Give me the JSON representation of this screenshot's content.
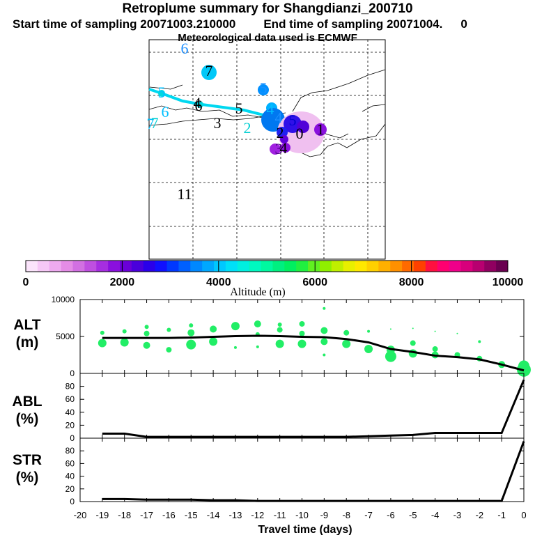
{
  "header": {
    "title": "Retroplume summary for Shangdianzi_200710",
    "start_label": "Start time of sampling 20071003.210000",
    "end_label": "End time of sampling 20071004.",
    "end_suffix": "0",
    "met_label": "Meteorological data used is ECMWF"
  },
  "map": {
    "day_labels": [
      {
        "text": "6",
        "color": "#1e90ff"
      },
      {
        "text": "7",
        "color": "#000000"
      },
      {
        "text": "7",
        "color": "#00bfff"
      },
      {
        "text": "5",
        "color": "#1e90ff"
      },
      {
        "text": "5",
        "color": "#00bfff"
      },
      {
        "text": "6",
        "color": "#00bfff"
      },
      {
        "text": "6",
        "color": "#000000"
      },
      {
        "text": "4",
        "color": "#00bfff"
      },
      {
        "text": "5",
        "color": "#000000"
      },
      {
        "text": "4",
        "color": "#000000"
      },
      {
        "text": "3",
        "color": "#000000"
      },
      {
        "text": "2",
        "color": "#00ced1"
      },
      {
        "text": "7",
        "color": "#00ced1"
      },
      {
        "text": "4",
        "color": "#1e90ff"
      },
      {
        "text": "5",
        "color": "#0000cd"
      },
      {
        "text": "2",
        "color": "#000000"
      },
      {
        "text": "0",
        "color": "#000000"
      },
      {
        "text": "1",
        "color": "#000000"
      },
      {
        "text": "3",
        "color": "#4b0082"
      },
      {
        "text": "4",
        "color": "#000000"
      },
      {
        "text": "11",
        "color": "#000000"
      }
    ]
  },
  "colorbar": {
    "label": "Altitude (m)",
    "ticks": [
      "0",
      "2000",
      "4000",
      "6000",
      "8000",
      "10000"
    ],
    "colors": [
      "#fbe4fb",
      "#f6c8f6",
      "#eeaaf0",
      "#e48ce6",
      "#d270e2",
      "#bf4fe0",
      "#a62ee0",
      "#8a10de",
      "#6a00d8",
      "#4a00dc",
      "#2a00ea",
      "#1010ff",
      "#0038ff",
      "#0060ff",
      "#0088ff",
      "#00a8ff",
      "#00c8ff",
      "#00e0f8",
      "#00f0e0",
      "#00f8c0",
      "#00f8a0",
      "#00f080",
      "#00f060",
      "#20f040",
      "#60f020",
      "#90f000",
      "#c0f000",
      "#e8f000",
      "#ffe800",
      "#ffd000",
      "#ffb000",
      "#ff9000",
      "#ff6a00",
      "#ff4000",
      "#ff1040",
      "#ff0070",
      "#f0008a",
      "#d8007c",
      "#b80070",
      "#900060",
      "#6a0050"
    ]
  },
  "chart_data": [
    {
      "type": "line",
      "name": "ALT",
      "ylabel": "ALT (m)",
      "ylim": [
        0,
        10000
      ],
      "yticks": [
        "0",
        "5000",
        "10000"
      ],
      "x": [
        -19,
        -18,
        -17,
        -16,
        -15,
        -14,
        -13,
        -12,
        -11,
        -10,
        -9,
        -8,
        -7,
        -6,
        -5,
        -4,
        -3,
        -2,
        -1,
        0
      ],
      "values": [
        4800,
        4800,
        4800,
        4800,
        4850,
        4950,
        5050,
        5100,
        5050,
        4950,
        4900,
        4650,
        4200,
        3300,
        2900,
        2400,
        2200,
        1900,
        1200,
        400
      ],
      "scatter": [
        {
          "x": -19,
          "y": 5500,
          "s": 3
        },
        {
          "x": -19,
          "y": 4100,
          "s": 6
        },
        {
          "x": -18,
          "y": 5700,
          "s": 3
        },
        {
          "x": -18,
          "y": 4200,
          "s": 6
        },
        {
          "x": -17,
          "y": 6300,
          "s": 3
        },
        {
          "x": -17,
          "y": 5400,
          "s": 4
        },
        {
          "x": -17,
          "y": 3800,
          "s": 5
        },
        {
          "x": -16,
          "y": 5900,
          "s": 3
        },
        {
          "x": -16,
          "y": 3200,
          "s": 4
        },
        {
          "x": -15,
          "y": 6500,
          "s": 3
        },
        {
          "x": -15,
          "y": 5500,
          "s": 5
        },
        {
          "x": -15,
          "y": 3900,
          "s": 7
        },
        {
          "x": -14,
          "y": 6000,
          "s": 5
        },
        {
          "x": -14,
          "y": 4300,
          "s": 6
        },
        {
          "x": -13,
          "y": 6400,
          "s": 6
        },
        {
          "x": -13,
          "y": 3500,
          "s": 2
        },
        {
          "x": -12,
          "y": 6700,
          "s": 5
        },
        {
          "x": -12,
          "y": 5300,
          "s": 3
        },
        {
          "x": -12,
          "y": 3600,
          "s": 2
        },
        {
          "x": -11,
          "y": 6600,
          "s": 3
        },
        {
          "x": -11,
          "y": 5900,
          "s": 4
        },
        {
          "x": -11,
          "y": 4000,
          "s": 6
        },
        {
          "x": -10,
          "y": 6700,
          "s": 4
        },
        {
          "x": -10,
          "y": 5400,
          "s": 4
        },
        {
          "x": -10,
          "y": 4000,
          "s": 6
        },
        {
          "x": -9,
          "y": 8800,
          "s": 2
        },
        {
          "x": -9,
          "y": 5800,
          "s": 5
        },
        {
          "x": -9,
          "y": 4300,
          "s": 5
        },
        {
          "x": -9,
          "y": 2500,
          "s": 2
        },
        {
          "x": -8,
          "y": 5500,
          "s": 4
        },
        {
          "x": -8,
          "y": 4000,
          "s": 6
        },
        {
          "x": -7,
          "y": 5700,
          "s": 2
        },
        {
          "x": -7,
          "y": 3300,
          "s": 6
        },
        {
          "x": -6,
          "y": 6000,
          "s": 1
        },
        {
          "x": -6,
          "y": 3200,
          "s": 6
        },
        {
          "x": -6,
          "y": 2300,
          "s": 8
        },
        {
          "x": -5,
          "y": 6100,
          "s": 1
        },
        {
          "x": -5,
          "y": 4100,
          "s": 4
        },
        {
          "x": -5,
          "y": 2700,
          "s": 6
        },
        {
          "x": -4,
          "y": 5700,
          "s": 1
        },
        {
          "x": -4,
          "y": 3300,
          "s": 4
        },
        {
          "x": -4,
          "y": 2500,
          "s": 5
        },
        {
          "x": -3,
          "y": 5400,
          "s": 1
        },
        {
          "x": -3,
          "y": 2500,
          "s": 4
        },
        {
          "x": -2,
          "y": 4300,
          "s": 2
        },
        {
          "x": -2,
          "y": 2000,
          "s": 4
        },
        {
          "x": -1,
          "y": 1200,
          "s": 5
        },
        {
          "x": 0,
          "y": 1000,
          "s": 8
        },
        {
          "x": 0,
          "y": 500,
          "s": 10
        }
      ]
    },
    {
      "type": "line",
      "name": "ABL",
      "ylabel": "ABL (%)",
      "ylim": [
        0,
        100
      ],
      "yticks": [
        "0",
        "20",
        "40",
        "60",
        "80"
      ],
      "x": [
        -19,
        -18,
        -17,
        -16,
        -15,
        -14,
        -13,
        -12,
        -11,
        -10,
        -9,
        -8,
        -7,
        -6,
        -5,
        -4,
        -3,
        -2,
        -1,
        0
      ],
      "values": [
        7,
        7,
        2,
        2,
        2,
        2,
        2,
        2,
        2,
        2,
        2,
        2,
        3,
        4,
        5,
        8,
        8,
        8,
        8,
        90
      ]
    },
    {
      "type": "line",
      "name": "STR",
      "ylabel": "STR (%)",
      "ylim": [
        0,
        100
      ],
      "yticks": [
        "0",
        "20",
        "40",
        "60",
        "80"
      ],
      "x": [
        -19,
        -18,
        -17,
        -16,
        -15,
        -14,
        -13,
        -12,
        -11,
        -10,
        -9,
        -8,
        -7,
        -6,
        -5,
        -4,
        -3,
        -2,
        -1,
        0
      ],
      "values": [
        4,
        4,
        3,
        3,
        3,
        2,
        2,
        1,
        1,
        1,
        1,
        1,
        1,
        1,
        1,
        1,
        1,
        1,
        1,
        95
      ],
      "xlabel": "Travel time (days)",
      "xticks": [
        "-20",
        "-19",
        "-18",
        "-17",
        "-16",
        "-15",
        "-14",
        "-13",
        "-12",
        "-11",
        "-10",
        "-9",
        "-8",
        "-7",
        "-6",
        "-5",
        "-4",
        "-3",
        "-2",
        "-1",
        "0"
      ]
    }
  ],
  "panel_labels": {
    "alt": [
      "ALT",
      "(m)"
    ],
    "abl": [
      "ABL",
      "(%)"
    ],
    "str": [
      "STR",
      "(%)"
    ]
  }
}
